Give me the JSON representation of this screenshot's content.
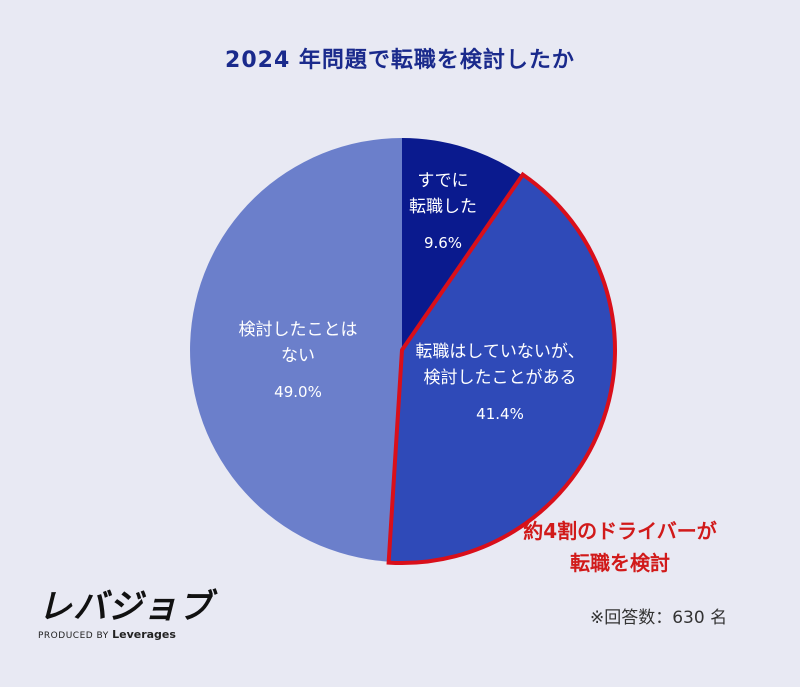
{
  "chart_data": {
    "type": "pie",
    "title": "2024 年問題で転職を検討したか",
    "slices": [
      {
        "label_lines": [
          "すでに",
          "転職した"
        ],
        "value": 9.6,
        "value_label": "9.6%",
        "color": "#0a1a8e"
      },
      {
        "label_lines": [
          "転職はしていないが、",
          "検討したことがある"
        ],
        "value": 41.4,
        "value_label": "41.4%",
        "color": "#2f4ab8",
        "highlighted": true
      },
      {
        "label_lines": [
          "検討したことは",
          "ない"
        ],
        "value": 49.0,
        "value_label": "49.0%",
        "color": "#6b7fcb"
      }
    ],
    "start": "12 o'clock",
    "direction": "clockwise",
    "highlight_color": "#d90f1a"
  },
  "callout": {
    "line1": "約4割のドライバーが",
    "line2": "転職を検討"
  },
  "logo": {
    "main": "レバジョブ",
    "produced_by": "PRODUCED BY",
    "brand": "Leverages"
  },
  "note": "※回答数：630 名"
}
